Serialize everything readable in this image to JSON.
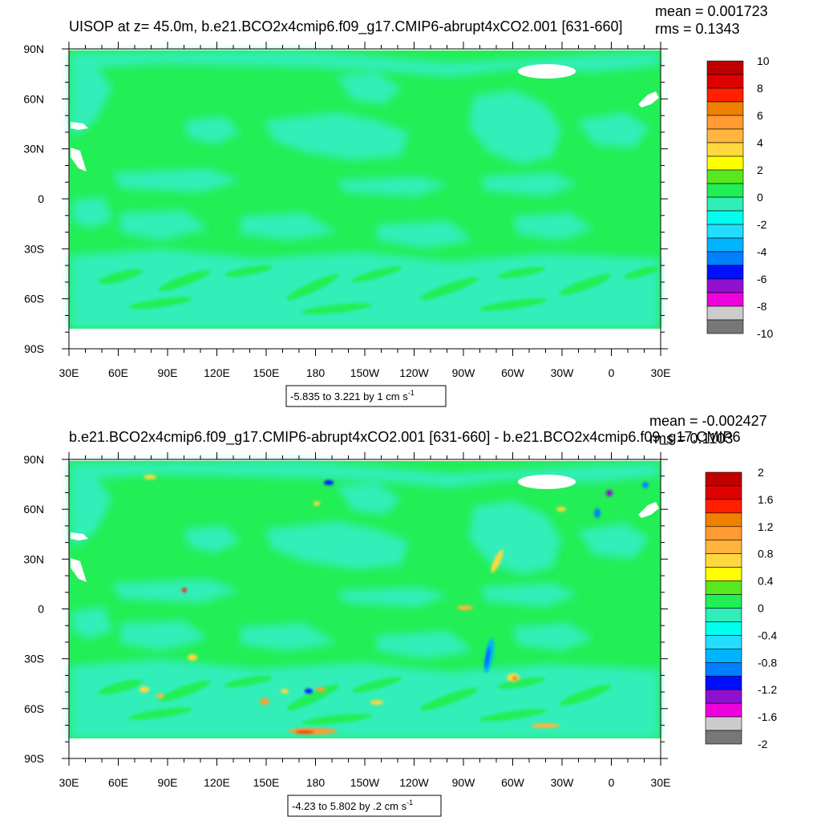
{
  "chart_data": [
    {
      "type": "heatmap",
      "title": "UISOP at z=  45.0m, b.e21.BCO2x4cmip6.f09_g17.CMIP6-abrupt4xCO2.001 [631-660]",
      "stats": {
        "mean": "mean = 0.001723",
        "rms": "rms = 0.1343"
      },
      "xlabel": "",
      "ylabel": "",
      "x_ticks": [
        "30E",
        "60E",
        "90E",
        "120E",
        "150E",
        "180",
        "150W",
        "120W",
        "90W",
        "60W",
        "30W",
        "0",
        "30E"
      ],
      "y_ticks": [
        "90N",
        "60N",
        "30N",
        "0",
        "30S",
        "60S",
        "90S"
      ],
      "range_label": "-5.835 to 3.221 by 1 cm s",
      "range_superscript": "-1",
      "colorbar": {
        "levels": [
          "10",
          "8",
          "6",
          "4",
          "2",
          "0",
          "-2",
          "-4",
          "-6",
          "-8",
          "-10"
        ],
        "colors": [
          "#c00000",
          "#e00000",
          "#ff2000",
          "#f08000",
          "#ff9b30",
          "#ffb540",
          "#ffd840",
          "#ffff00",
          "#58e820",
          "#22ee55",
          "#30eeb8",
          "#00ffee",
          "#22ddff",
          "#00b4ff",
          "#0080ff",
          "#0010ff",
          "#9010d0",
          "#ee00dd",
          "#cccccc",
          "#777777"
        ]
      },
      "field_summary": {
        "dominant": "#22ee55",
        "secondary": "#30eeb8",
        "land_mask": "#ffffff"
      }
    },
    {
      "type": "heatmap",
      "title": "b.e21.BCO2x4cmip6.f09_g17.CMIP6-abrupt4xCO2.001 [631-660] - b.e21.BCO2x4cmip6.f09_g17.CMIP6",
      "stats": {
        "mean": "mean = -0.002427",
        "rms": "rms = 0.1103"
      },
      "xlabel": "",
      "ylabel": "",
      "x_ticks": [
        "30E",
        "60E",
        "90E",
        "120E",
        "150E",
        "180",
        "150W",
        "120W",
        "90W",
        "60W",
        "30W",
        "0",
        "30E"
      ],
      "y_ticks": [
        "90N",
        "60N",
        "30N",
        "0",
        "30S",
        "60S",
        "90S"
      ],
      "range_label": "-4.23 to 5.802 by .2 cm s",
      "range_superscript": "-1",
      "colorbar": {
        "levels": [
          "2",
          "1.6",
          "1.2",
          "0.8",
          "0.4",
          "0",
          "-0.4",
          "-0.8",
          "-1.2",
          "-1.6",
          "-2"
        ],
        "colors": [
          "#c00000",
          "#e00000",
          "#ff2000",
          "#f08000",
          "#ff9b30",
          "#ffb540",
          "#ffd840",
          "#ffff00",
          "#58e820",
          "#22ee55",
          "#30eeb8",
          "#00ffee",
          "#22ddff",
          "#00b4ff",
          "#0080ff",
          "#0010ff",
          "#9010d0",
          "#ee00dd",
          "#cccccc",
          "#777777"
        ]
      },
      "field_summary": {
        "dominant": "#22ee55",
        "secondary": "#30eeb8",
        "land_mask": "#ffffff"
      }
    }
  ]
}
